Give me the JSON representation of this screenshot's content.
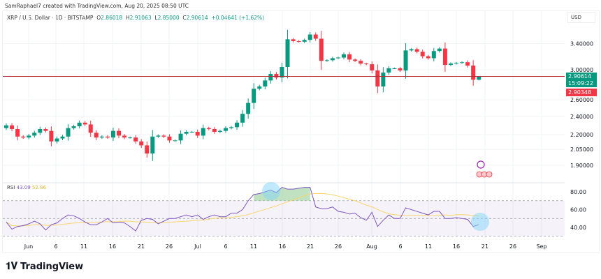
{
  "credit": "SamRaphael7 created with TradingView.com, Aug 20, 2025 08:50 UTC",
  "legend": {
    "symbol": "XRP / U.S. Dollar · 1D · BITSTAMP",
    "o_label": "O",
    "o": "2.86018",
    "h_label": "H",
    "h": "2.91063",
    "l_label": "L",
    "l": "2.85000",
    "c_label": "C",
    "c": "2.90614",
    "change": "+0.04641 (+1.62%)"
  },
  "currency": "USD",
  "last_price": "2.90614",
  "countdown": "15:09:22",
  "prev_price": "2.90348",
  "rsi_legend": {
    "name": "RSI",
    "value": "43.09",
    "ma": "52.86"
  },
  "brand": "TradingView",
  "colors": {
    "up": "#089981",
    "down": "#f23645",
    "rsi": "#7e57c2",
    "rsi_ma": "#f7d66b",
    "price_line": "#b22833"
  },
  "chart_data": [
    {
      "type": "candlestick",
      "scale": "log",
      "ylim": [
        1.85,
        3.75
      ],
      "yticks": [
        "3.40000",
        "3.00000",
        "2.60000",
        "2.40000",
        "2.20000",
        "2.05000",
        "1.90000"
      ],
      "xticks": [
        "Jun",
        "6",
        "11",
        "16",
        "21",
        "26",
        "Jul",
        "6",
        "11",
        "16",
        "21",
        "26",
        "Aug",
        "6",
        "11",
        "16",
        "21",
        "26",
        "Sep"
      ],
      "start_date": "2025-05-28",
      "closes": [
        2.3,
        2.26,
        2.18,
        2.17,
        2.19,
        2.22,
        2.26,
        2.24,
        2.13,
        2.16,
        2.18,
        2.27,
        2.29,
        2.33,
        2.31,
        2.22,
        2.17,
        2.18,
        2.17,
        2.24,
        2.19,
        2.17,
        2.17,
        2.13,
        2.09,
        2.01,
        2.18,
        2.19,
        2.18,
        2.14,
        2.14,
        2.21,
        2.23,
        2.23,
        2.19,
        2.27,
        2.26,
        2.23,
        2.24,
        2.27,
        2.28,
        2.33,
        2.43,
        2.56,
        2.74,
        2.77,
        2.85,
        2.94,
        2.89,
        3.04,
        3.47,
        3.44,
        3.43,
        3.46,
        3.55,
        3.48,
        3.13,
        3.14,
        3.17,
        3.18,
        3.23,
        3.15,
        3.13,
        3.09,
        3.08,
        2.99,
        2.77,
        2.96,
        3.02,
        3.02,
        2.99,
        3.29,
        3.31,
        3.27,
        3.2,
        3.17,
        3.28,
        3.32,
        3.07,
        3.09,
        3.1,
        3.11,
        3.06,
        2.86,
        2.90614
      ],
      "last_ohlc": [
        2.86018,
        2.91063,
        2.85,
        2.90614
      ]
    },
    {
      "type": "line",
      "title": "RSI",
      "ylim": [
        25,
        90
      ],
      "yticks": [
        "80.00",
        "60.00",
        "40.00"
      ],
      "bands": [
        30,
        50,
        70
      ],
      "rsi": [
        46,
        38,
        41,
        42,
        44,
        47,
        44,
        37,
        43,
        45,
        50,
        54,
        53,
        50,
        46,
        43,
        43,
        46,
        50,
        45,
        46,
        45,
        41,
        36,
        48,
        50,
        49,
        44,
        47,
        50,
        50,
        52,
        54,
        52,
        54,
        49,
        52,
        54,
        52,
        52,
        56,
        56,
        60,
        70,
        77,
        78,
        80,
        82,
        79,
        85,
        83,
        83,
        84,
        85,
        85,
        63,
        61,
        61,
        63,
        58,
        57,
        55,
        56,
        51,
        48,
        57,
        41,
        48,
        54,
        50,
        50,
        62,
        60,
        58,
        56,
        54,
        58,
        58,
        50,
        50,
        51,
        50,
        49,
        41,
        43.09
      ]
    }
  ]
}
